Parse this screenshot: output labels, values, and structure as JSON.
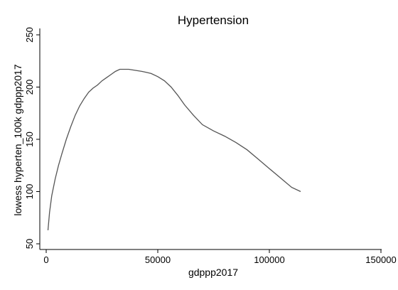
{
  "chart_data": {
    "type": "line",
    "title": "Hypertension",
    "xlabel": "gdppp2017",
    "ylabel": "lowess hyperten_100k gdppp2017",
    "xlim": [
      0,
      150000
    ],
    "ylim": [
      50,
      250
    ],
    "xticks": [
      0,
      50000,
      100000,
      150000
    ],
    "xtick_labels": [
      "0",
      "50000",
      "100000",
      "150000"
    ],
    "yticks": [
      50,
      100,
      150,
      200,
      250
    ],
    "ytick_labels": [
      "50",
      "100",
      "150",
      "200",
      "250"
    ],
    "grid": false,
    "series": [
      {
        "color": "#555555",
        "points": [
          [
            800,
            63
          ],
          [
            1500,
            80
          ],
          [
            2500,
            96
          ],
          [
            4000,
            112
          ],
          [
            5500,
            125
          ],
          [
            7000,
            136
          ],
          [
            9000,
            150
          ],
          [
            11000,
            162
          ],
          [
            13000,
            173
          ],
          [
            15000,
            182
          ],
          [
            17000,
            189
          ],
          [
            19000,
            195
          ],
          [
            21000,
            199
          ],
          [
            23000,
            202
          ],
          [
            25000,
            206
          ],
          [
            27000,
            209
          ],
          [
            29000,
            212
          ],
          [
            31000,
            215
          ],
          [
            33000,
            217
          ],
          [
            35000,
            217
          ],
          [
            37000,
            217
          ],
          [
            40000,
            216
          ],
          [
            43000,
            215
          ],
          [
            45000,
            214
          ],
          [
            47000,
            213
          ],
          [
            50000,
            210
          ],
          [
            53000,
            206
          ],
          [
            56000,
            200
          ],
          [
            59000,
            192
          ],
          [
            62000,
            183
          ],
          [
            66000,
            173
          ],
          [
            70000,
            164
          ],
          [
            75000,
            158
          ],
          [
            80000,
            153
          ],
          [
            85000,
            147
          ],
          [
            90000,
            140
          ],
          [
            95000,
            131
          ],
          [
            100000,
            122
          ],
          [
            105000,
            113
          ],
          [
            110000,
            104
          ],
          [
            114000,
            100
          ]
        ]
      }
    ]
  }
}
